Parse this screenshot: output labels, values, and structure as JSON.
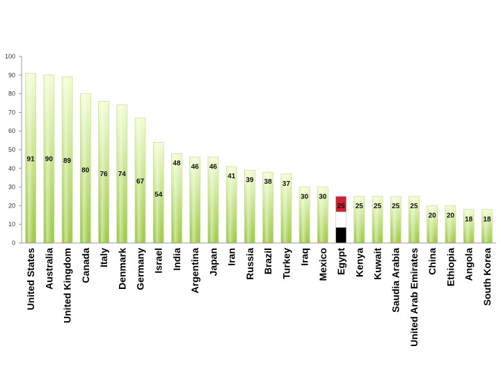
{
  "chart_data": {
    "type": "bar",
    "title": "",
    "xlabel": "",
    "ylabel": "",
    "ylim": [
      0,
      100
    ],
    "yticks": [
      0,
      10,
      20,
      30,
      40,
      50,
      60,
      70,
      80,
      90,
      100
    ],
    "grid": false,
    "legend": "none",
    "categories": [
      "United States",
      "Australia",
      "United Kingdom",
      "Canada",
      "Italy",
      "Denmark",
      "Germany",
      "Israel",
      "India",
      "Argentina",
      "Japan",
      "Iran",
      "Russia",
      "Brazil",
      "Turkey",
      "Iraq",
      "Mexico",
      "Egypt",
      "Kenya",
      "Kuwait",
      "Saudia Arabia",
      "United Arab Emirates",
      "China",
      "Ethiopia",
      "Angola",
      "South Korea"
    ],
    "values": [
      91,
      90,
      89,
      80,
      76,
      74,
      67,
      54,
      48,
      46,
      46,
      41,
      39,
      38,
      37,
      30,
      30,
      25,
      25,
      25,
      25,
      25,
      20,
      20,
      18,
      18
    ],
    "data_labels": [
      "91",
      "90",
      "89",
      "80",
      "76",
      "74",
      "67",
      "54",
      "48",
      "46",
      "46",
      "41",
      "39",
      "38",
      "37",
      "30",
      "30",
      "25",
      "25",
      "25",
      "25",
      "25",
      "20",
      "20",
      "18",
      "18"
    ],
    "highlight": {
      "category": "Egypt",
      "style": "flag stripes",
      "colors": [
        "#d0202e",
        "#ffffff",
        "#000000"
      ]
    },
    "colors": {
      "bar_light": "#eefcc8",
      "bar_dark": "#a4cf4c",
      "axis": "#999999"
    }
  }
}
